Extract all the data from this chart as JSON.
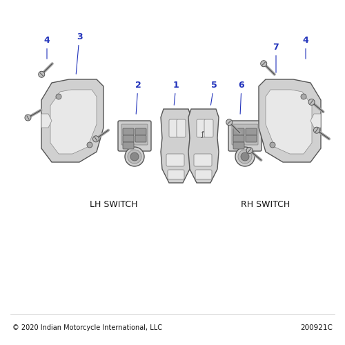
{
  "bg_color": "#ffffff",
  "label_color": "#2233bb",
  "text_color": "#111111",
  "part_color": "#d0d0d0",
  "part_color2": "#e8e8e8",
  "part_edge": "#888888",
  "part_edge_dark": "#555555",
  "screw_color": "#aaaaaa",
  "copyright_text": "© 2020 Indian Motorcycle International, LLC",
  "part_number": "200921C",
  "lh_label": "LH SWITCH",
  "rh_label": "RH SWITCH"
}
